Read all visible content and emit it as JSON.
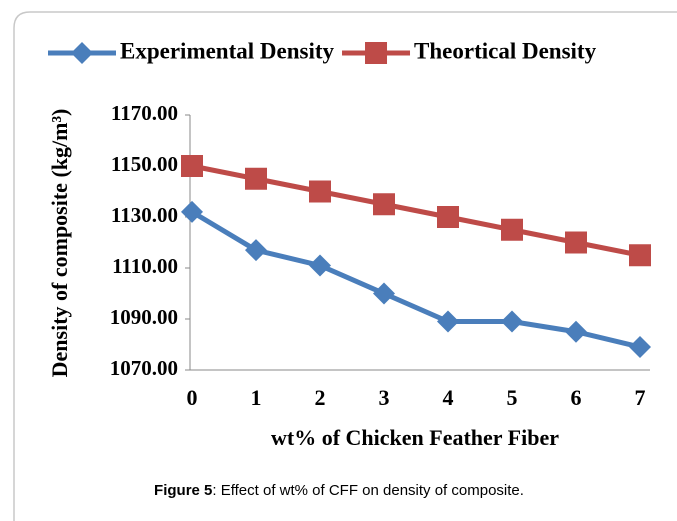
{
  "chart_data": {
    "type": "line",
    "x_label": "wt% of Chicken Feather Fiber",
    "y_label": "Density of composite (kg/m³)",
    "x": [
      0,
      1,
      2,
      3,
      4,
      5,
      6,
      7
    ],
    "xlim": [
      0,
      7
    ],
    "xticks": [
      0,
      1,
      2,
      3,
      4,
      5,
      6,
      7
    ],
    "ylim": [
      1070,
      1170
    ],
    "yticks": [
      {
        "value": 1070,
        "label": "1070.00"
      },
      {
        "value": 1090,
        "label": "1090.00"
      },
      {
        "value": 1110,
        "label": "1110.00"
      },
      {
        "value": 1130,
        "label": "1130.00"
      },
      {
        "value": 1150,
        "label": "1150.00"
      },
      {
        "value": 1170,
        "label": "1170.00"
      }
    ],
    "legend": "top",
    "series": [
      {
        "name": "Experimental Density",
        "color": "#4a7ebb",
        "marker": "diamond",
        "values": [
          1132,
          1117,
          1111,
          1100,
          1089,
          1089,
          1085,
          1079
        ]
      },
      {
        "name": "Theortical Density",
        "color": "#be4b48",
        "marker": "square",
        "values": [
          1150,
          1145,
          1140,
          1135,
          1130,
          1125,
          1120,
          1115
        ]
      }
    ]
  },
  "caption": {
    "label": "Figure 5",
    "text": ": Effect of wt% of CFF on density of composite."
  }
}
